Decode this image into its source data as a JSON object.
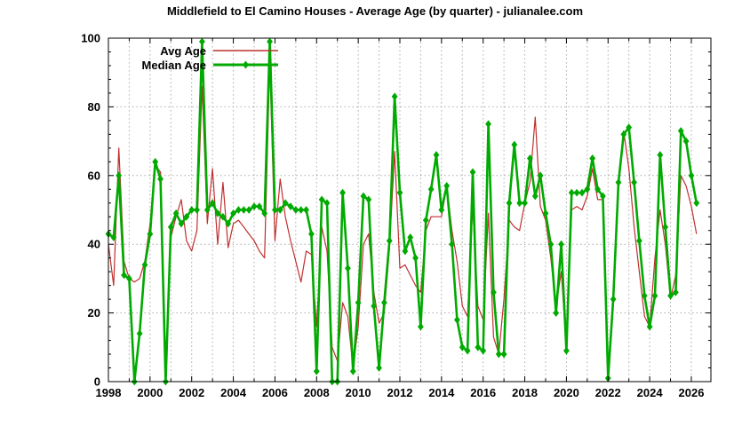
{
  "title": "Middlefield to El Camino Houses - Average Age (by quarter) - julianalee.com",
  "chart_data": {
    "type": "line",
    "title": "Middlefield to El Camino Houses - Average Age (by quarter) - julianalee.com",
    "xlabel": "",
    "ylabel": "",
    "xlim": [
      1998,
      2026.94
    ],
    "ylim": [
      0,
      100
    ],
    "x_start": 1998.0,
    "x_step": 0.25,
    "x_tick_labels": [
      "1998",
      "2000",
      "2002",
      "2004",
      "2006",
      "2008",
      "2010",
      "2012",
      "2014",
      "2016",
      "2018",
      "2020",
      "2022",
      "2024",
      "2026"
    ],
    "y_tick_labels": [
      "0",
      "20",
      "40",
      "60",
      "80",
      "100"
    ],
    "grid": {
      "vertical_every_years": 1,
      "horizontal_at": [
        20,
        40,
        60,
        80
      ],
      "style": "dotted-gray"
    },
    "legend_position": "top-left-inside",
    "colors": {
      "grid": "#aaaaaa",
      "axis": "#000000"
    },
    "series": [
      {
        "name": "Avg Age",
        "color": "#c03030",
        "style": "line",
        "values": [
          40,
          28,
          68,
          35,
          30,
          29,
          30,
          35,
          46,
          63,
          61,
          4,
          42,
          48,
          53,
          41,
          38,
          44,
          86,
          46,
          62,
          40,
          58,
          39,
          46,
          47,
          45,
          43,
          41,
          38,
          36,
          93,
          41,
          59,
          48,
          41,
          35,
          29,
          38,
          37,
          16,
          45,
          38,
          10,
          6,
          23,
          19,
          4,
          16,
          40,
          43,
          26,
          17,
          20,
          39,
          67,
          33,
          34,
          31,
          28,
          26,
          44,
          48,
          48,
          48,
          57,
          44,
          35,
          22,
          19,
          51,
          22,
          18,
          49,
          13,
          8,
          24,
          47,
          45,
          44,
          52,
          58,
          77,
          51,
          47,
          36,
          22,
          32,
          10,
          50,
          51,
          50,
          54,
          62,
          53,
          53,
          4,
          24,
          59,
          73,
          62,
          45,
          32,
          19,
          16,
          36,
          50,
          40,
          24,
          31,
          60,
          57,
          51,
          43
        ]
      },
      {
        "name": "Median Age",
        "color": "#00aa00",
        "style": "line-diamond",
        "values": [
          43,
          42,
          60,
          31,
          30,
          0,
          14,
          34,
          43,
          64,
          59,
          0,
          45,
          49,
          46,
          48,
          50,
          50,
          99,
          50,
          52,
          49,
          48,
          46,
          49,
          50,
          50,
          50,
          51,
          51,
          49,
          99,
          50,
          50,
          52,
          51,
          50,
          50,
          50,
          43,
          3,
          53,
          52,
          0,
          0,
          55,
          33,
          3,
          23,
          54,
          53,
          22,
          4,
          23,
          41,
          83,
          55,
          38,
          42,
          36,
          16,
          47,
          56,
          66,
          50,
          57,
          40,
          18,
          10,
          9,
          61,
          10,
          9,
          75,
          26,
          8,
          8,
          52,
          69,
          52,
          52,
          65,
          54,
          60,
          49,
          40,
          20,
          40,
          9,
          55,
          55,
          55,
          56,
          65,
          56,
          54,
          1,
          24,
          58,
          72,
          74,
          58,
          41,
          25,
          16,
          25,
          66,
          45,
          25,
          26,
          73,
          70,
          60,
          52
        ]
      }
    ]
  }
}
